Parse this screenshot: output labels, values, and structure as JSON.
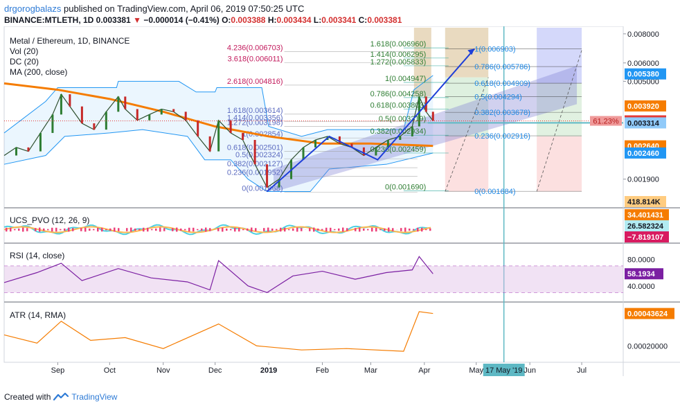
{
  "header": {
    "author": "drgorogbalazs",
    "published_text": "published on TradingView.com, April 06, 2019 07:50:25 UTC",
    "symbol": "BINANCE:MTLETH, 1D",
    "last": "0.003381",
    "arrow": "▼",
    "change": "−0.000014 (−0.41%)",
    "o_label": "O:",
    "o_value": "0.003388",
    "h_label": "H:",
    "h_value": "0.003434",
    "l_label": "L:",
    "l_value": "0.003341",
    "c_label": "C:",
    "c_value": "0.003381"
  },
  "legends": {
    "main_title": "Metal / Ethereum, 1D, BINANCE",
    "vol": "Vol (20)",
    "dc": "DC (20)",
    "ma": "MA (200, close)",
    "pvo": "UCS_PVO (12, 26, 9)",
    "rsi": "RSI (14, close)",
    "atr": "ATR (14, RMA)"
  },
  "footer": {
    "created_with": "Created with",
    "brand": "TradingView"
  },
  "colors": {
    "price_up": "#26a69a",
    "price_down": "#ef5350",
    "ma": "#f57c00",
    "donchian": "#2196f3",
    "rsi": "#7b1fa2",
    "atr": "#f57c00",
    "fib_projection": "#1a1a8c",
    "channel": "#7e7ed4",
    "current_price": "#e53935"
  },
  "chart_data": [
    {
      "type": "line",
      "title": "Metal / Ethereum, 1D, BINANCE",
      "x_ticks": [
        "Sep",
        "Oct",
        "Nov",
        "Dec",
        "2019",
        "Feb",
        "Mar",
        "Apr",
        "May",
        "Jun",
        "Jul"
      ],
      "y_ticks": [
        "0.008000",
        "0.006000",
        "0.005000",
        "0.001900"
      ],
      "y_scale": "log",
      "ylim": [
        0.00145,
        0.0085
      ],
      "series": [
        {
          "name": "MTLETH close",
          "points": [
            [
              "2018-08-01",
              0.0024
            ],
            [
              "2018-08-08",
              0.0026
            ],
            [
              "2018-08-15",
              0.0025
            ],
            [
              "2018-08-22",
              0.003
            ],
            [
              "2018-08-29",
              0.0036
            ],
            [
              "2018-09-03",
              0.0044
            ],
            [
              "2018-09-08",
              0.0039
            ],
            [
              "2018-09-15",
              0.0033
            ],
            [
              "2018-09-22",
              0.0031
            ],
            [
              "2018-09-29",
              0.0037
            ],
            [
              "2018-10-06",
              0.0043
            ],
            [
              "2018-10-10",
              0.0038
            ],
            [
              "2018-10-17",
              0.0034
            ],
            [
              "2018-10-24",
              0.0036
            ],
            [
              "2018-10-31",
              0.0038
            ],
            [
              "2018-11-07",
              0.0037
            ],
            [
              "2018-11-14",
              0.0034
            ],
            [
              "2018-11-21",
              0.0029
            ],
            [
              "2018-11-28",
              0.0025
            ],
            [
              "2018-12-03",
              0.0034
            ],
            [
              "2018-12-10",
              0.003
            ],
            [
              "2018-12-17",
              0.0028
            ],
            [
              "2018-12-24",
              0.0022
            ],
            [
              "2018-12-31",
              0.00175
            ],
            [
              "2019-01-07",
              0.0019
            ],
            [
              "2019-01-14",
              0.0023
            ],
            [
              "2019-01-21",
              0.0026
            ],
            [
              "2019-01-28",
              0.0028
            ],
            [
              "2019-02-04",
              0.0029
            ],
            [
              "2019-02-11",
              0.0027
            ],
            [
              "2019-02-18",
              0.0026
            ],
            [
              "2019-02-25",
              0.0024
            ],
            [
              "2019-03-04",
              0.0026
            ],
            [
              "2019-03-11",
              0.0028
            ],
            [
              "2019-03-18",
              0.0029
            ],
            [
              "2019-03-25",
              0.0032
            ],
            [
              "2019-03-29",
              0.0043
            ],
            [
              "2019-04-02",
              0.0037
            ],
            [
              "2019-04-06",
              0.003381
            ]
          ]
        },
        {
          "name": "MA (200, close)",
          "points": [
            [
              "2018-08-01",
              0.0049
            ],
            [
              "2018-09-01",
              0.0046
            ],
            [
              "2018-10-01",
              0.0042
            ],
            [
              "2018-11-01",
              0.0037
            ],
            [
              "2018-12-01",
              0.0032
            ],
            [
              "2019-01-01",
              0.0029
            ],
            [
              "2019-02-01",
              0.0027
            ],
            [
              "2019-03-01",
              0.0027
            ],
            [
              "2019-04-06",
              0.00264
            ]
          ]
        }
      ],
      "fib_levels_left": [
        {
          "ratio": "4.236",
          "price": "0.006703"
        },
        {
          "ratio": "3.618",
          "price": "0.006011"
        },
        {
          "ratio": "2.618",
          "price": "0.004816"
        },
        {
          "ratio": "1.618",
          "price": "0.003614"
        },
        {
          "ratio": "1.414",
          "price": "0.003356"
        },
        {
          "ratio": "1.272",
          "price": "0.003198"
        },
        {
          "ratio": "1",
          "price": "0.002854"
        },
        {
          "ratio": "0.618",
          "price": "0.002501"
        },
        {
          "ratio": "0.5",
          "price": "0.002324"
        },
        {
          "ratio": "0.382",
          "price": "0.002127"
        },
        {
          "ratio": "0.236",
          "price": "0.001952"
        },
        {
          "ratio": "0",
          "price": "0.001668"
        }
      ],
      "fib_levels_mid": [
        {
          "ratio": "1.618",
          "price": "0.006960"
        },
        {
          "ratio": "1.414",
          "price": "0.006295"
        },
        {
          "ratio": "1.272",
          "price": "0.005833"
        },
        {
          "ratio": "1",
          "price": "0.004947"
        },
        {
          "ratio": "0.786",
          "price": "0.004258"
        },
        {
          "ratio": "0.618",
          "price": "0.003803"
        },
        {
          "ratio": "0.5",
          "price": "0.003319"
        },
        {
          "ratio": "0.382",
          "price": "0.002934"
        },
        {
          "ratio": "0.236",
          "price": "0.002459"
        },
        {
          "ratio": "0",
          "price": "0.001690"
        }
      ],
      "fib_levels_right": [
        {
          "ratio": "1",
          "price": "0.006903"
        },
        {
          "ratio": "0.786",
          "price": "0.005786"
        },
        {
          "ratio": "0.618",
          "price": "0.004909"
        },
        {
          "ratio": "0.5",
          "price": "0.004294"
        },
        {
          "ratio": "0.382",
          "price": "0.003678"
        },
        {
          "ratio": "0.236",
          "price": "0.002916"
        },
        {
          "ratio": "0",
          "price": "0.001684"
        }
      ],
      "price_tags": [
        {
          "label": "0.005380",
          "value": 0.00538,
          "bg": "#2196f3",
          "fg": "#ffffff"
        },
        {
          "label": "0.003920",
          "value": 0.00392,
          "bg": "#f57c00",
          "fg": "#ffffff"
        },
        {
          "label": "0.003381",
          "value": 0.003381,
          "bg": "#e53935",
          "fg": "#ffffff"
        },
        {
          "label": "0.003314",
          "value": 0.003314,
          "bg": "#90caf9",
          "fg": "#131722"
        },
        {
          "label": "0.002640",
          "value": 0.00264,
          "bg": "#f57c00",
          "fg": "#ffffff"
        },
        {
          "label": "0.002460",
          "value": 0.00246,
          "bg": "#2196f3",
          "fg": "#ffffff"
        },
        {
          "label": "418.814K",
          "value": 0.00146,
          "bg": "#ffcc80",
          "fg": "#131722"
        }
      ],
      "fib_retracement_label": "61.23%",
      "date_marker": "17 May '19"
    },
    {
      "type": "line",
      "title": "UCS_PVO (12, 26, 9)",
      "values_shown": [
        "34.401431",
        "26.582324",
        "−7.819107"
      ]
    },
    {
      "type": "line",
      "title": "RSI (14, close)",
      "y_ticks": [
        "80.0000",
        "40.0000"
      ],
      "ylim": [
        20,
        100
      ],
      "bands": [
        30,
        70
      ],
      "last": "58.1934",
      "series": [
        {
          "name": "RSI",
          "points": [
            [
              "2018-08-01",
              45
            ],
            [
              "2018-08-20",
              60
            ],
            [
              "2018-09-03",
              74
            ],
            [
              "2018-09-15",
              48
            ],
            [
              "2018-10-06",
              66
            ],
            [
              "2018-10-25",
              52
            ],
            [
              "2018-11-15",
              46
            ],
            [
              "2018-11-28",
              34
            ],
            [
              "2018-12-03",
              78
            ],
            [
              "2018-12-20",
              40
            ],
            [
              "2018-12-31",
              30
            ],
            [
              "2019-01-15",
              55
            ],
            [
              "2019-02-01",
              62
            ],
            [
              "2019-02-20",
              50
            ],
            [
              "2019-03-10",
              60
            ],
            [
              "2019-03-25",
              64
            ],
            [
              "2019-03-29",
              84
            ],
            [
              "2019-04-06",
              58.19
            ]
          ]
        }
      ]
    },
    {
      "type": "line",
      "title": "ATR (14, RMA)",
      "y_ticks": [
        "0.00020000"
      ],
      "last": "0.00043624",
      "series": [
        {
          "name": "ATR",
          "points": [
            [
              "2018-08-01",
              0.00028
            ],
            [
              "2018-08-20",
              0.00022
            ],
            [
              "2018-09-03",
              0.00038
            ],
            [
              "2018-09-20",
              0.00024
            ],
            [
              "2018-10-10",
              0.00026
            ],
            [
              "2018-11-01",
              0.00018
            ],
            [
              "2018-12-03",
              0.00036
            ],
            [
              "2018-12-25",
              0.0002
            ],
            [
              "2019-01-20",
              0.00017
            ],
            [
              "2019-02-15",
              0.00018
            ],
            [
              "2019-03-20",
              0.00016
            ],
            [
              "2019-03-29",
              0.00045
            ],
            [
              "2019-04-06",
              0.00043624
            ]
          ]
        }
      ]
    }
  ]
}
